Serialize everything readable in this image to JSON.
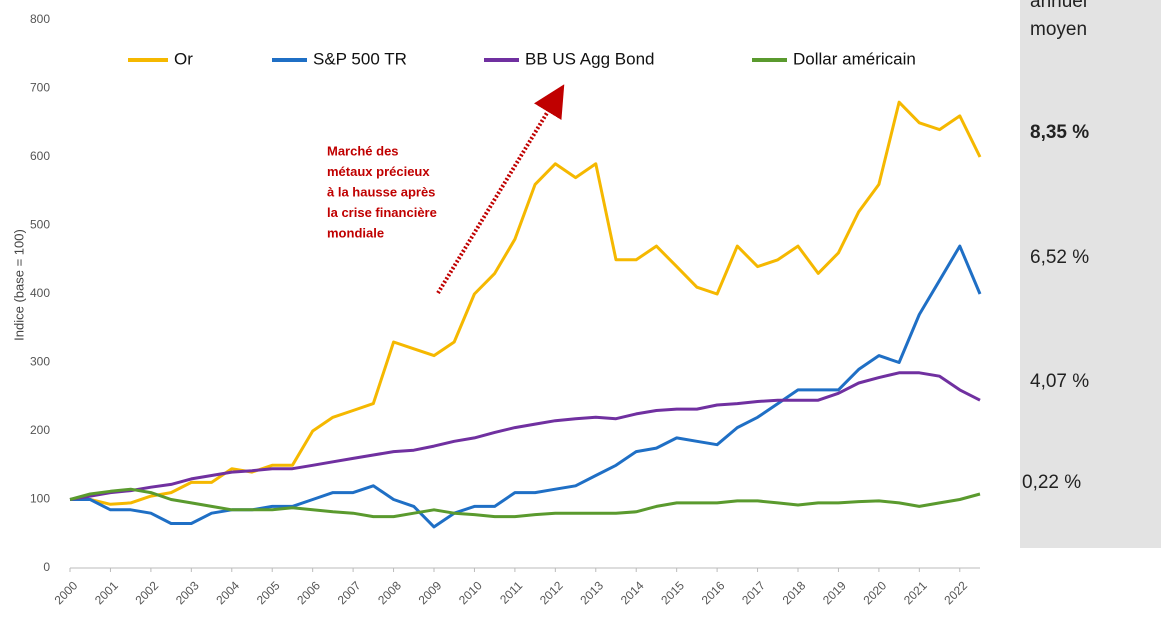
{
  "chart_data": {
    "type": "line",
    "y_label": "Indice (base = 100)",
    "x": [
      2000,
      2000.5,
      2001,
      2001.5,
      2002,
      2002.5,
      2003,
      2003.5,
      2004,
      2004.5,
      2005,
      2005.5,
      2006,
      2006.5,
      2007,
      2007.5,
      2008,
      2008.5,
      2009,
      2009.5,
      2010,
      2010.5,
      2011,
      2011.5,
      2012,
      2012.5,
      2013,
      2013.5,
      2014,
      2014.5,
      2015,
      2015.5,
      2016,
      2016.5,
      2017,
      2017.5,
      2018,
      2018.5,
      2019,
      2019.5,
      2020,
      2020.5,
      2021,
      2021.5,
      2022,
      2022.5
    ],
    "series": [
      {
        "name": "Or",
        "color": "#f5b800",
        "values": [
          100,
          100,
          93,
          95,
          105,
          110,
          125,
          125,
          145,
          140,
          150,
          150,
          200,
          220,
          230,
          240,
          330,
          320,
          310,
          330,
          400,
          430,
          480,
          560,
          590,
          570,
          590,
          450,
          450,
          470,
          440,
          410,
          400,
          470,
          440,
          450,
          470,
          430,
          460,
          520,
          560,
          680,
          650,
          640,
          660,
          600
        ]
      },
      {
        "name": "S&P 500 TR",
        "color": "#1f6fc5",
        "values": [
          100,
          100,
          85,
          85,
          80,
          65,
          65,
          80,
          85,
          85,
          90,
          90,
          100,
          110,
          110,
          120,
          100,
          90,
          60,
          80,
          90,
          90,
          110,
          110,
          115,
          120,
          135,
          150,
          170,
          175,
          190,
          185,
          180,
          205,
          220,
          240,
          260,
          260,
          260,
          290,
          310,
          300,
          370,
          420,
          470,
          400
        ]
      },
      {
        "name": "BB US Agg Bond",
        "color": "#7030a0",
        "values": [
          100,
          105,
          110,
          113,
          118,
          122,
          130,
          135,
          140,
          142,
          145,
          145,
          150,
          155,
          160,
          165,
          170,
          172,
          178,
          185,
          190,
          198,
          205,
          210,
          215,
          218,
          220,
          218,
          225,
          230,
          232,
          232,
          238,
          240,
          243,
          245,
          245,
          245,
          255,
          270,
          278,
          285,
          285,
          280,
          260,
          245
        ]
      },
      {
        "name": "Dollar américain",
        "color": "#5a9a2e",
        "values": [
          100,
          108,
          112,
          115,
          110,
          100,
          95,
          90,
          85,
          85,
          85,
          88,
          85,
          82,
          80,
          75,
          75,
          80,
          85,
          80,
          78,
          75,
          75,
          78,
          80,
          80,
          80,
          80,
          82,
          90,
          95,
          95,
          95,
          98,
          98,
          95,
          92,
          95,
          95,
          97,
          98,
          95,
          90,
          95,
          100,
          108
        ]
      }
    ],
    "xlim": [
      2000,
      2022.5
    ],
    "xticks": [
      2000,
      2001,
      2002,
      2003,
      2004,
      2005,
      2006,
      2007,
      2008,
      2009,
      2010,
      2011,
      2012,
      2013,
      2014,
      2015,
      2016,
      2017,
      2018,
      2019,
      2020,
      2021,
      2022
    ],
    "ylim": [
      0,
      800
    ],
    "yticks": [
      0,
      100,
      200,
      300,
      400,
      500,
      600,
      700,
      800
    ],
    "grid": false,
    "annotation": [
      "Marché des",
      "métaux précieux",
      "à la hausse après",
      "la crise financière",
      "mondiale"
    ],
    "side_panel": {
      "header": [
        "annuel",
        "moyen"
      ],
      "returns": [
        "8,35 %",
        "6,52 %",
        "4,07 %",
        "0,22 %"
      ]
    }
  }
}
